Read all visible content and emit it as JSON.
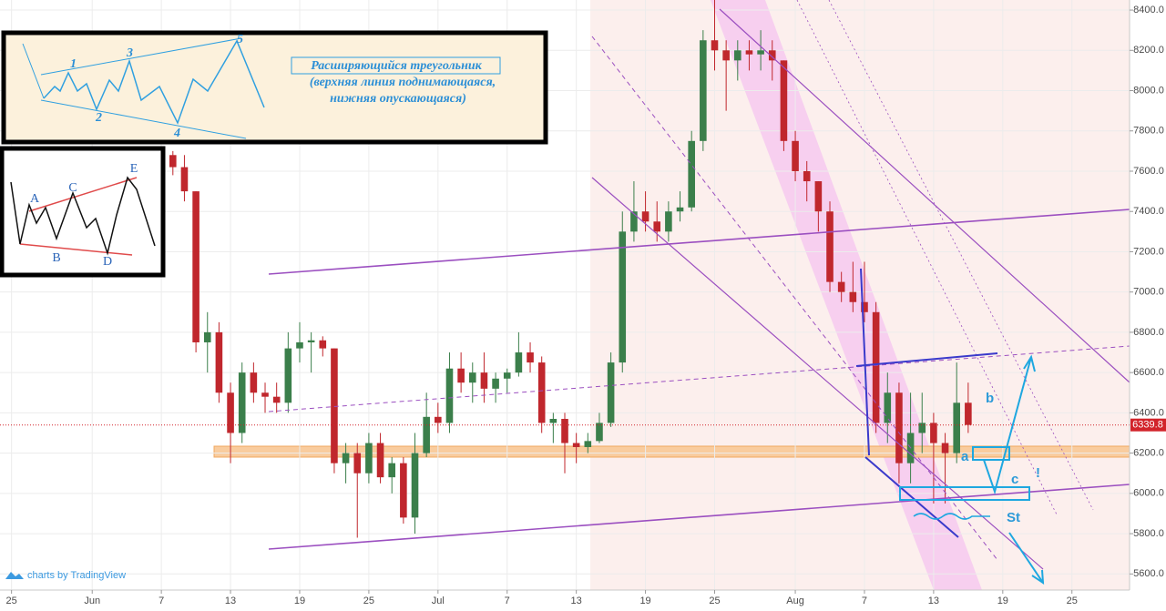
{
  "chart_data": {
    "type": "candlestick",
    "x": [
      "Jun 6",
      "Jun 7",
      "Jun 8",
      "Jun 9",
      "Jun 10",
      "Jun 11",
      "Jun 12",
      "Jun 13",
      "Jun 14",
      "Jun 15",
      "Jun 16",
      "Jun 17",
      "Jun 18",
      "Jun 19",
      "Jun 20",
      "Jun 21",
      "Jun 22",
      "Jun 23",
      "Jun 24",
      "Jun 25",
      "Jun 26",
      "Jun 27",
      "Jun 28",
      "Jun 29",
      "Jun 30",
      "Jul 1",
      "Jul 2",
      "Jul 3",
      "Jul 4",
      "Jul 5",
      "Jul 6",
      "Jul 7",
      "Jul 8",
      "Jul 9",
      "Jul 10",
      "Jul 11",
      "Jul 12",
      "Jul 13",
      "Jul 14",
      "Jul 15",
      "Jul 16",
      "Jul 17",
      "Jul 18",
      "Jul 19",
      "Jul 20",
      "Jul 21",
      "Jul 22",
      "Jul 23",
      "Jul 24",
      "Jul 25",
      "Jul 26",
      "Jul 27",
      "Jul 28",
      "Jul 29",
      "Jul 30",
      "Jul 31",
      "Aug 1",
      "Aug 2",
      "Aug 3",
      "Aug 4",
      "Aug 5",
      "Aug 6",
      "Aug 7",
      "Aug 8",
      "Aug 9",
      "Aug 10",
      "Aug 11",
      "Aug 12",
      "Aug 13",
      "Aug 14",
      "Aug 15",
      "Aug 16"
    ],
    "open": [
      7600,
      7650,
      7680,
      7620,
      7500,
      6750,
      6800,
      6500,
      6300,
      6600,
      6500,
      6480,
      6450,
      6720,
      6750,
      6760,
      6720,
      6150,
      6200,
      6100,
      6250,
      6080,
      6150,
      5880,
      6200,
      6380,
      6350,
      6620,
      6550,
      6600,
      6520,
      6570,
      6600,
      6700,
      6650,
      6350,
      6370,
      6250,
      6230,
      6260,
      6350,
      6650,
      7300,
      7400,
      7350,
      7300,
      7400,
      7420,
      7750,
      8250,
      8200,
      8150,
      8200,
      8180,
      8200,
      8150,
      7750,
      7600,
      7550,
      7400,
      7050,
      7000,
      6950,
      6900,
      6350,
      6500,
      6150,
      6300,
      6350,
      6250,
      6200,
      6450
    ],
    "high": [
      7700,
      7720,
      7700,
      7680,
      7500,
      6900,
      6850,
      6550,
      6650,
      6650,
      6550,
      6550,
      6800,
      6850,
      6800,
      6780,
      6720,
      6250,
      6250,
      6300,
      6300,
      6180,
      6180,
      6300,
      6500,
      6450,
      6700,
      6700,
      6650,
      6700,
      6600,
      6620,
      6800,
      6750,
      6680,
      6400,
      6400,
      6300,
      6300,
      6400,
      6700,
      7400,
      7550,
      7500,
      7450,
      7450,
      7500,
      7800,
      8300,
      8480,
      8250,
      8250,
      8250,
      8300,
      8250,
      8150,
      7800,
      7650,
      7550,
      7450,
      7100,
      7150,
      7150,
      6950,
      6600,
      6550,
      6500,
      6500,
      6400,
      6300,
      6650,
      6550
    ],
    "low": [
      7550,
      7600,
      7580,
      7450,
      6700,
      6600,
      6450,
      6150,
      6250,
      6450,
      6400,
      6400,
      6400,
      6650,
      6600,
      6680,
      6100,
      6050,
      5780,
      6050,
      6050,
      6000,
      5850,
      5800,
      6180,
      6300,
      6300,
      6500,
      6450,
      6450,
      6450,
      6500,
      6580,
      6600,
      6300,
      6250,
      6100,
      6150,
      6200,
      6250,
      6330,
      6600,
      7250,
      7300,
      7250,
      7250,
      7350,
      7400,
      7700,
      8100,
      7900,
      8050,
      8100,
      8100,
      8050,
      7700,
      7550,
      7450,
      7300,
      7000,
      6950,
      6900,
      6850,
      6300,
      6250,
      6050,
      6050,
      6200,
      5950,
      5950,
      6150,
      6300
    ],
    "close": [
      7650,
      7680,
      7620,
      7500,
      6750,
      6800,
      6500,
      6300,
      6600,
      6500,
      6480,
      6450,
      6720,
      6750,
      6760,
      6720,
      6150,
      6200,
      6100,
      6250,
      6080,
      6150,
      5880,
      6200,
      6380,
      6350,
      6620,
      6550,
      6600,
      6520,
      6570,
      6600,
      6700,
      6650,
      6350,
      6370,
      6250,
      6230,
      6260,
      6350,
      6650,
      7300,
      7400,
      7350,
      7300,
      7400,
      7420,
      7750,
      8250,
      8200,
      8150,
      8200,
      8180,
      8200,
      8150,
      7750,
      7600,
      7550,
      7400,
      7050,
      7000,
      6950,
      6900,
      6350,
      6500,
      6150,
      6300,
      6350,
      6250,
      6200,
      6450,
      6340
    ],
    "up_color": "#3b7f4b",
    "down_color": "#c0272d",
    "last_price": 6339.8,
    "last_price_color": "#d2232a",
    "xlim": [
      "May 24",
      "Aug 30"
    ],
    "xticks": [
      {
        "value": "May 25",
        "label": "25"
      },
      {
        "value": "Jun 1",
        "label": "Jun"
      },
      {
        "value": "Jun 7",
        "label": "7"
      },
      {
        "value": "Jun 13",
        "label": "13"
      },
      {
        "value": "Jun 19",
        "label": "19"
      },
      {
        "value": "Jun 25",
        "label": "25"
      },
      {
        "value": "Jul 1",
        "label": "Jul"
      },
      {
        "value": "Jul 7",
        "label": "7"
      },
      {
        "value": "Jul 13",
        "label": "13"
      },
      {
        "value": "Jul 19",
        "label": "19"
      },
      {
        "value": "Jul 25",
        "label": "25"
      },
      {
        "value": "Aug 1",
        "label": "Aug"
      },
      {
        "value": "Aug 7",
        "label": "7"
      },
      {
        "value": "Aug 13",
        "label": "13"
      },
      {
        "value": "Aug 19",
        "label": "19"
      },
      {
        "value": "Aug 25",
        "label": "25"
      }
    ],
    "ylim": [
      5520,
      8450
    ],
    "yticks": [
      {
        "value": 5600,
        "label": "5600.0"
      },
      {
        "value": 5800,
        "label": "5800.0"
      },
      {
        "value": 6000,
        "label": "6000.0"
      },
      {
        "value": 6200,
        "label": "6200.0"
      },
      {
        "value": 6400,
        "label": "6400.0"
      },
      {
        "value": 6600,
        "label": "6600.0"
      },
      {
        "value": 6800,
        "label": "6800.0"
      },
      {
        "value": 7000,
        "label": "7000.0"
      },
      {
        "value": 7200,
        "label": "7200.0"
      },
      {
        "value": 7400,
        "label": "7400.0"
      },
      {
        "value": 7600,
        "label": "7600.0"
      },
      {
        "value": 7800,
        "label": "7800.0"
      },
      {
        "value": 8000,
        "label": "8000.0"
      },
      {
        "value": 8200,
        "label": "8200.0"
      },
      {
        "value": 8400,
        "label": "8400.0"
      }
    ],
    "grid": true,
    "annotations": {
      "title": "Расширяющийся треугольник",
      "line2": "(верхняя линия поднимающаяся,",
      "line3": "нижняя опускающаяся)",
      "wave_top": [
        "1",
        "2",
        "3",
        "4",
        "5"
      ],
      "wave_bottom": [
        "A",
        "B",
        "C",
        "D",
        "E"
      ],
      "markers": [
        "a",
        "b",
        "c",
        "St",
        "!"
      ],
      "watermark": "charts by TradingView"
    }
  }
}
